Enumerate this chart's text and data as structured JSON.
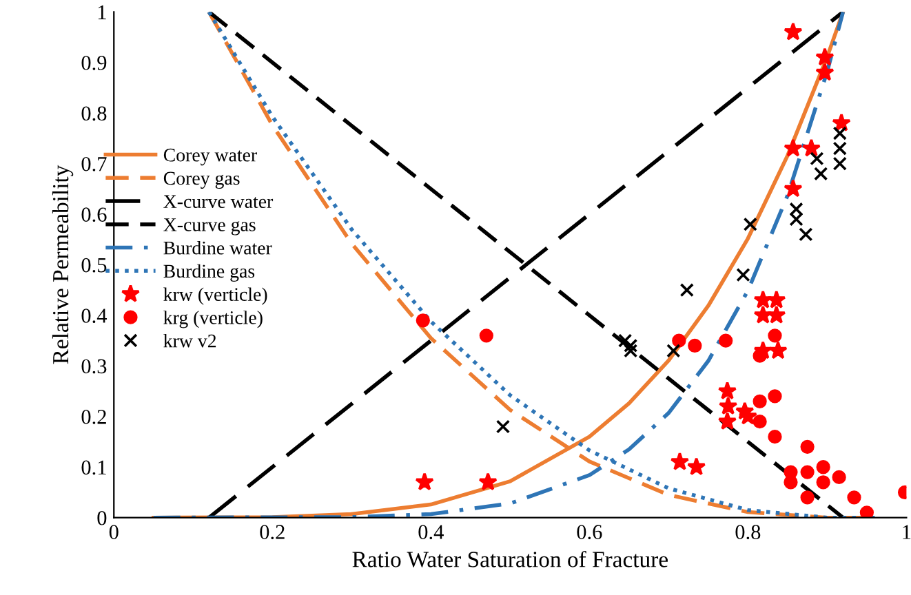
{
  "chart_data": {
    "type": "line",
    "xlabel": "Ratio Water Saturation of Fracture",
    "ylabel": "Relative Permeability",
    "xlim": [
      0,
      1
    ],
    "ylim": [
      0,
      1
    ],
    "xticks": [
      0,
      0.2,
      0.4,
      0.6,
      0.8,
      1
    ],
    "yticks": [
      0,
      0.1,
      0.2,
      0.3,
      0.4,
      0.5,
      0.6,
      0.7,
      0.8,
      0.9,
      1
    ],
    "grid": false,
    "legend": "left",
    "series": [
      {
        "name": "Corey water",
        "color": "#ed7d31",
        "line_style": "solid",
        "marker": "none",
        "x": [
          0.05,
          0.2,
          0.3,
          0.4,
          0.5,
          0.6,
          0.65,
          0.7,
          0.75,
          0.8,
          0.85,
          0.9,
          0.92
        ],
        "values": [
          0,
          0.001,
          0.007,
          0.026,
          0.072,
          0.16,
          0.226,
          0.311,
          0.419,
          0.552,
          0.716,
          0.911,
          1
        ]
      },
      {
        "name": "Corey gas",
        "color": "#ed7d31",
        "line_style": "dashed",
        "marker": "none",
        "x": [
          0.12,
          0.2,
          0.3,
          0.4,
          0.5,
          0.6,
          0.7,
          0.8,
          0.9,
          0.92,
          0.96
        ],
        "values": [
          1,
          0.776,
          0.542,
          0.355,
          0.213,
          0.111,
          0.045,
          0.011,
          0,
          0,
          0
        ]
      },
      {
        "name": "X-curve water",
        "color": "#000000",
        "line_style": "dashed",
        "marker": "none",
        "x": [
          0.12,
          0.92
        ],
        "values": [
          0,
          1
        ]
      },
      {
        "name": "X-curve gas",
        "color": "#000000",
        "line_style": "dashed",
        "marker": "none",
        "x": [
          0.12,
          0.92
        ],
        "values": [
          1,
          0
        ]
      },
      {
        "name": "Burdine water",
        "color": "#2e75b6",
        "line_style": "dashdot",
        "marker": "none",
        "x": [
          0.05,
          0.3,
          0.4,
          0.5,
          0.6,
          0.65,
          0.7,
          0.75,
          0.8,
          0.85,
          0.9,
          0.92
        ],
        "values": [
          0,
          0.001,
          0.007,
          0.028,
          0.084,
          0.135,
          0.207,
          0.31,
          0.449,
          0.637,
          0.882,
          1
        ]
      },
      {
        "name": "Burdine gas",
        "color": "#2e75b6",
        "line_style": "dotted",
        "marker": "none",
        "x": [
          0.12,
          0.2,
          0.3,
          0.4,
          0.5,
          0.6,
          0.7,
          0.8,
          0.9,
          0.92,
          0.96
        ],
        "values": [
          1,
          0.793,
          0.57,
          0.388,
          0.242,
          0.133,
          0.058,
          0.015,
          0,
          0,
          0
        ]
      },
      {
        "name": "krw (verticle)",
        "type": "scatter",
        "color": "#ff0000",
        "marker": "star",
        "x": [
          0.857,
          0.897,
          0.897,
          0.918,
          0.857,
          0.88,
          0.857,
          0.819,
          0.836,
          0.819,
          0.836,
          0.819,
          0.838,
          0.774,
          0.775,
          0.796,
          0.774,
          0.8,
          0.714,
          0.735,
          0.392,
          0.472
        ],
        "values": [
          0.96,
          0.91,
          0.88,
          0.78,
          0.73,
          0.73,
          0.65,
          0.43,
          0.43,
          0.4,
          0.4,
          0.33,
          0.33,
          0.25,
          0.22,
          0.21,
          0.19,
          0.2,
          0.11,
          0.1,
          0.07,
          0.07
        ]
      },
      {
        "name": "krg (verticle)",
        "type": "scatter",
        "color": "#ff0000",
        "marker": "circle",
        "x": [
          0.39,
          0.47,
          0.713,
          0.733,
          0.772,
          0.834,
          0.815,
          0.815,
          0.834,
          0.815,
          0.834,
          0.875,
          0.854,
          0.854,
          0.875,
          0.895,
          0.895,
          0.915,
          0.875,
          0.934,
          0.95,
          0.998
        ],
        "values": [
          0.39,
          0.36,
          0.35,
          0.34,
          0.35,
          0.36,
          0.32,
          0.23,
          0.24,
          0.19,
          0.16,
          0.14,
          0.09,
          0.07,
          0.09,
          0.1,
          0.07,
          0.08,
          0.04,
          0.04,
          0.01,
          0.05
        ]
      },
      {
        "name": "krw v2",
        "type": "scatter",
        "color": "#000000",
        "marker": "cross",
        "x": [
          0.803,
          0.861,
          0.861,
          0.873,
          0.887,
          0.892,
          0.916,
          0.916,
          0.916,
          0.794,
          0.723,
          0.645,
          0.652,
          0.652,
          0.706,
          0.491
        ],
        "values": [
          0.58,
          0.61,
          0.59,
          0.56,
          0.71,
          0.68,
          0.76,
          0.73,
          0.7,
          0.48,
          0.45,
          0.35,
          0.34,
          0.33,
          0.33,
          0.18
        ]
      }
    ]
  }
}
